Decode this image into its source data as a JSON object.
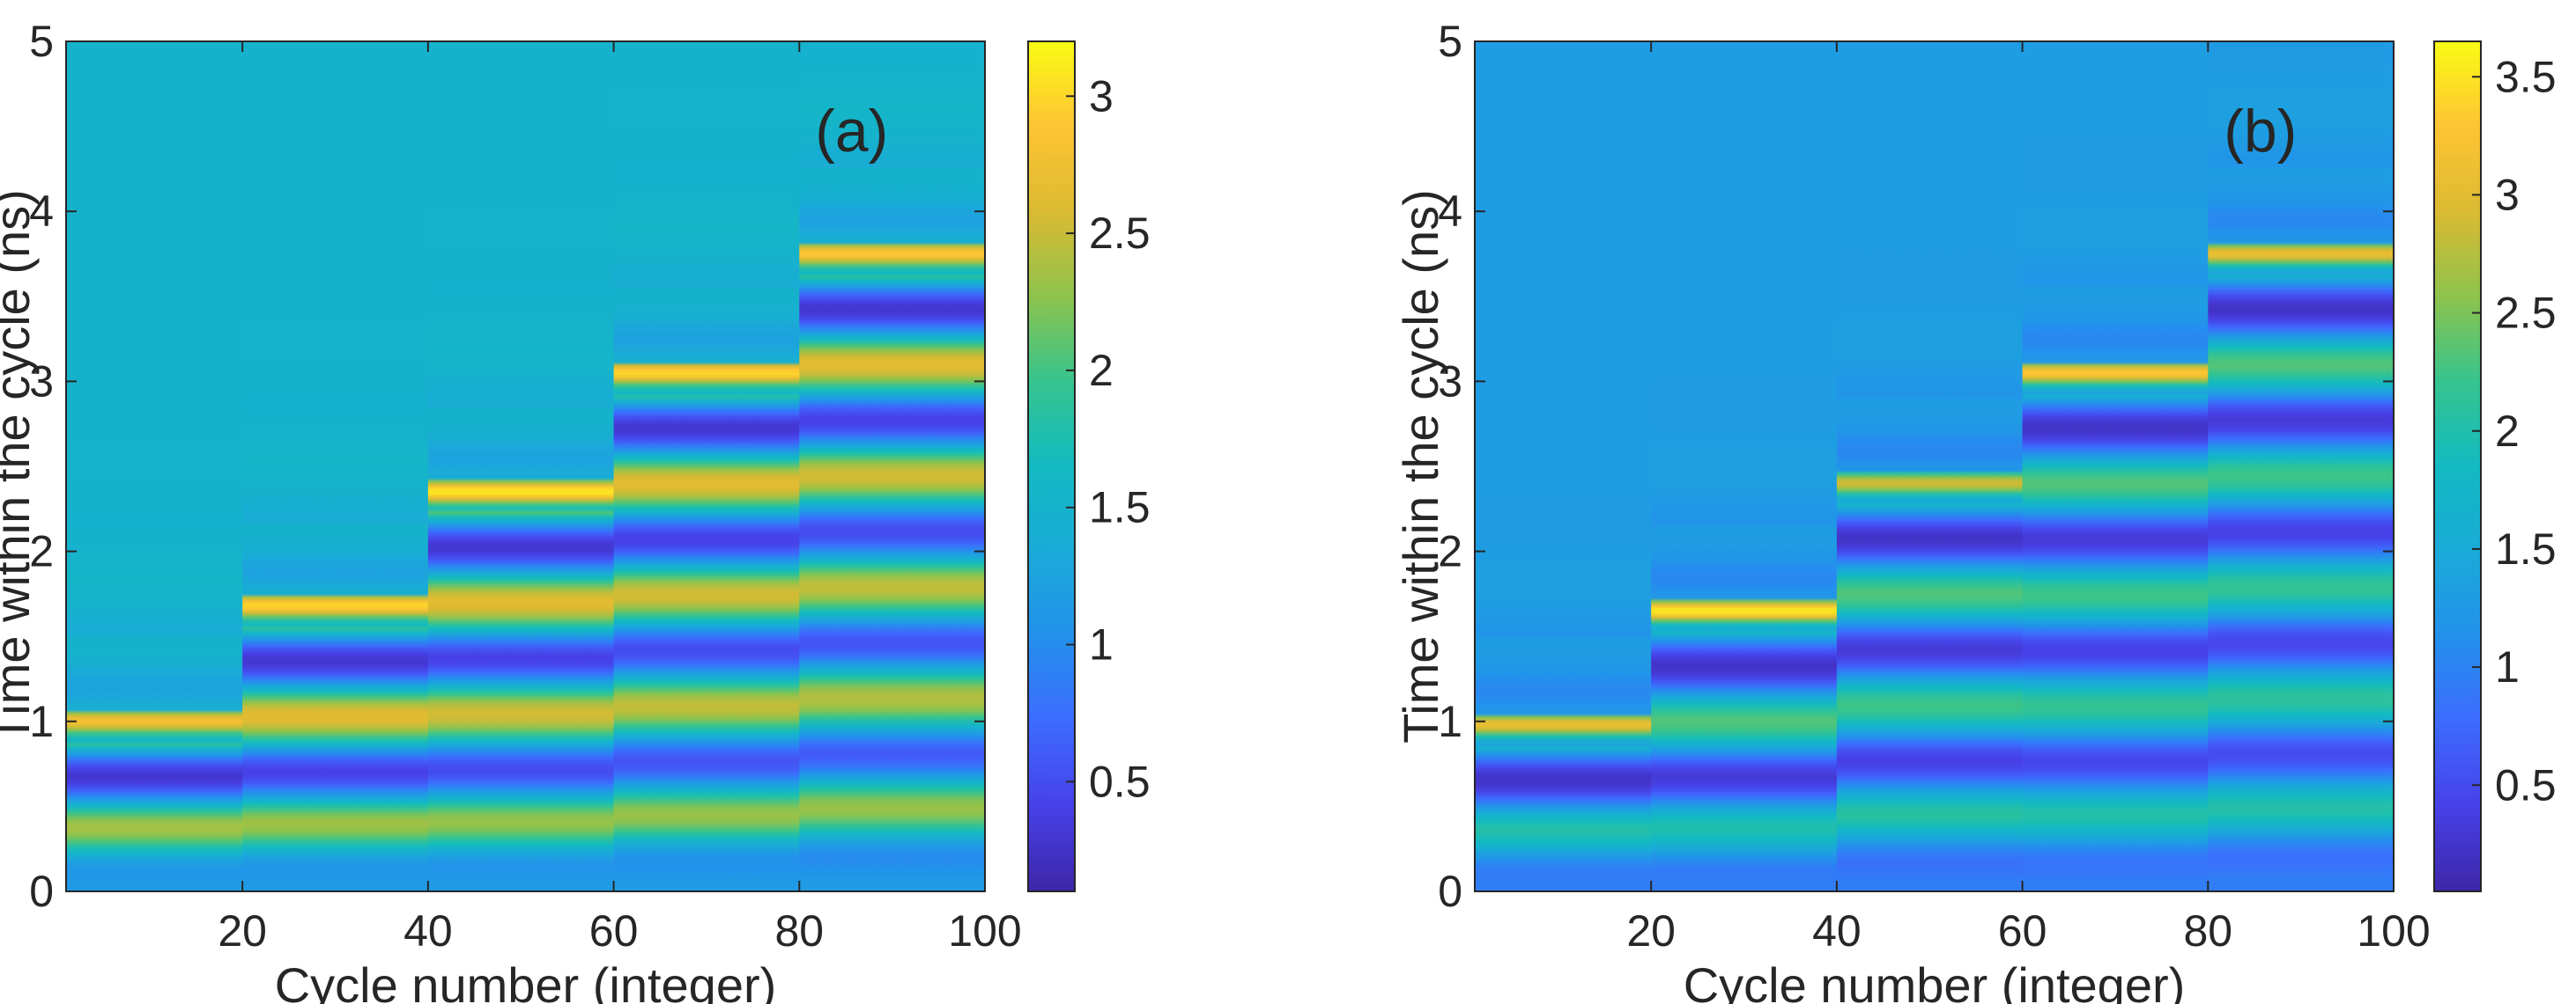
{
  "chart_data": [
    {
      "type": "heatmap",
      "panel_label": "(a)",
      "xlabel": "Cycle number (integer)",
      "ylabel": "Time within the cycle (ns)",
      "xlim": [
        1,
        100
      ],
      "ylim": [
        0,
        5
      ],
      "xticks": [
        20,
        40,
        60,
        80,
        100
      ],
      "xtick_labels": [
        "20",
        "40",
        "60",
        "80",
        "100"
      ],
      "yticks": [
        0,
        1,
        2,
        3,
        4,
        5
      ],
      "ytick_labels": [
        "0",
        "1",
        "2",
        "3",
        "4",
        "5"
      ],
      "colorbar": {
        "range": [
          0.1,
          3.2
        ],
        "ticks": [
          0.5,
          1,
          1.5,
          2,
          2.5,
          3
        ],
        "tick_labels": [
          "0.5",
          "1",
          "1.5",
          "2",
          "2.5",
          "3"
        ]
      },
      "background_value": 1.5,
      "stages": [
        {
          "start_cycle": 1,
          "end_cycle": 20,
          "peak_time": 1.0,
          "peak_value": 2.8
        },
        {
          "start_cycle": 20,
          "end_cycle": 40,
          "peak_time": 1.68,
          "peak_value": 3.0
        },
        {
          "start_cycle": 40,
          "end_cycle": 60,
          "peak_time": 2.35,
          "peak_value": 3.1
        },
        {
          "start_cycle": 60,
          "end_cycle": 80,
          "peak_time": 3.05,
          "peak_value": 3.0
        },
        {
          "start_cycle": 80,
          "end_cycle": 100,
          "peak_time": 3.75,
          "peak_value": 2.9
        }
      ]
    },
    {
      "type": "heatmap",
      "panel_label": "(b)",
      "xlabel": "Cycle number (integer)",
      "ylabel": "Time within the cycle (ns)",
      "xlim": [
        1,
        100
      ],
      "ylim": [
        0,
        5
      ],
      "xticks": [
        20,
        40,
        60,
        80,
        100
      ],
      "xtick_labels": [
        "20",
        "40",
        "60",
        "80",
        "100"
      ],
      "yticks": [
        0,
        1,
        2,
        3,
        4,
        5
      ],
      "ytick_labels": [
        "0",
        "1",
        "2",
        "3",
        "4",
        "5"
      ],
      "colorbar": {
        "range": [
          0.05,
          3.65
        ],
        "ticks": [
          0.5,
          1,
          1.5,
          2,
          2.5,
          3,
          3.5
        ],
        "tick_labels": [
          "0.5",
          "1",
          "1.5",
          "2",
          "2.5",
          "3",
          "3.5"
        ]
      },
      "background_value": 1.3,
      "stages": [
        {
          "start_cycle": 1,
          "end_cycle": 20,
          "peak_time": 0.98,
          "peak_value": 3.1
        },
        {
          "start_cycle": 20,
          "end_cycle": 40,
          "peak_time": 1.65,
          "peak_value": 3.55
        },
        {
          "start_cycle": 40,
          "end_cycle": 60,
          "peak_time": 2.4,
          "peak_value": 2.9
        },
        {
          "start_cycle": 60,
          "end_cycle": 80,
          "peak_time": 3.05,
          "peak_value": 3.3
        },
        {
          "start_cycle": 80,
          "end_cycle": 100,
          "peak_time": 3.75,
          "peak_value": 3.1
        }
      ]
    }
  ]
}
